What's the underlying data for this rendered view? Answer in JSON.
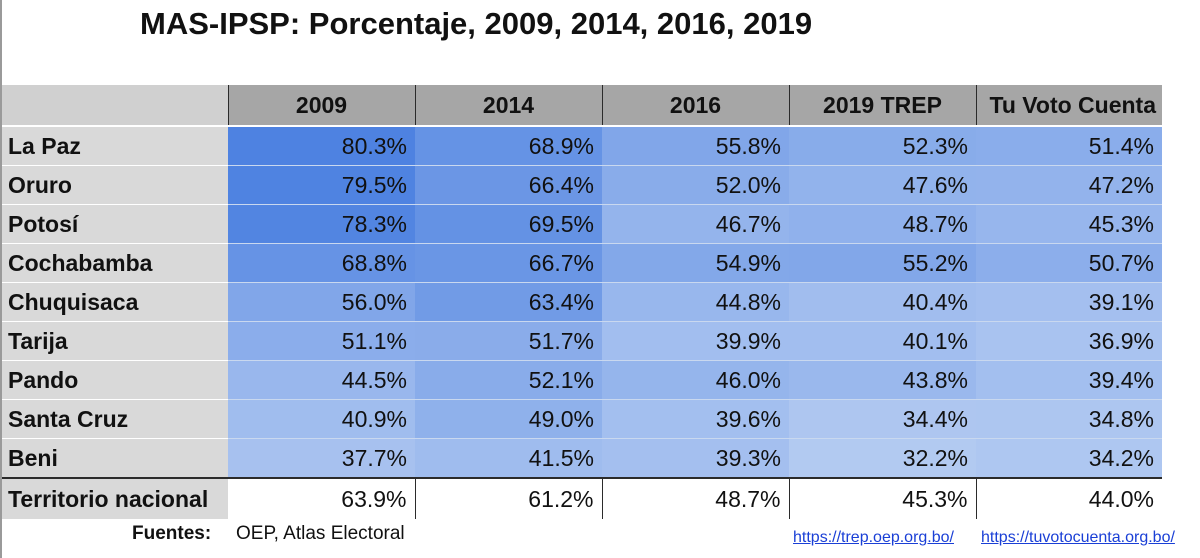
{
  "colors": {
    "header_bg": "#a6a6a6",
    "row_label_bg": "#d9d9d9",
    "cell_high": "#4a7fe0",
    "cell_low": "#b7cdf2",
    "link": "#1a3fd6"
  },
  "chart_data": {
    "type": "table",
    "title": "MAS-IPSP: Porcentaje, 2009, 2014, 2016, 2019",
    "columns": [
      "2009",
      "2014",
      "2016",
      "2019 TREP",
      "Tu Voto Cuenta"
    ],
    "rows": [
      {
        "name": "La Paz",
        "values": [
          "80.3%",
          "68.9%",
          "55.8%",
          "52.3%",
          "51.4%"
        ]
      },
      {
        "name": "Oruro",
        "values": [
          "79.5%",
          "66.4%",
          "52.0%",
          "47.6%",
          "47.2%"
        ]
      },
      {
        "name": "Potosí",
        "values": [
          "78.3%",
          "69.5%",
          "46.7%",
          "48.7%",
          "45.3%"
        ]
      },
      {
        "name": "Cochabamba",
        "values": [
          "68.8%",
          "66.7%",
          "54.9%",
          "55.2%",
          "50.7%"
        ]
      },
      {
        "name": "Chuquisaca",
        "values": [
          "56.0%",
          "63.4%",
          "44.8%",
          "40.4%",
          "39.1%"
        ]
      },
      {
        "name": "Tarija",
        "values": [
          "51.1%",
          "51.7%",
          "39.9%",
          "40.1%",
          "36.9%"
        ]
      },
      {
        "name": "Pando",
        "values": [
          "44.5%",
          "52.1%",
          "46.0%",
          "43.8%",
          "39.4%"
        ]
      },
      {
        "name": "Santa Cruz",
        "values": [
          "40.9%",
          "49.0%",
          "39.6%",
          "34.4%",
          "34.8%"
        ]
      },
      {
        "name": "Beni",
        "values": [
          "37.7%",
          "41.5%",
          "39.3%",
          "32.2%",
          "34.2%"
        ]
      }
    ],
    "total": {
      "name": "Territorio nacional",
      "values": [
        "63.9%",
        "61.2%",
        "48.7%",
        "45.3%",
        "44.0%"
      ]
    },
    "color_scale_range": [
      30,
      82
    ]
  },
  "footer": {
    "label": "Fuentes:",
    "text": "OEP, Atlas Electoral",
    "link1": "https://trep.oep.org.bo/",
    "link2": "https://tuvotocuenta.org.bo/"
  }
}
